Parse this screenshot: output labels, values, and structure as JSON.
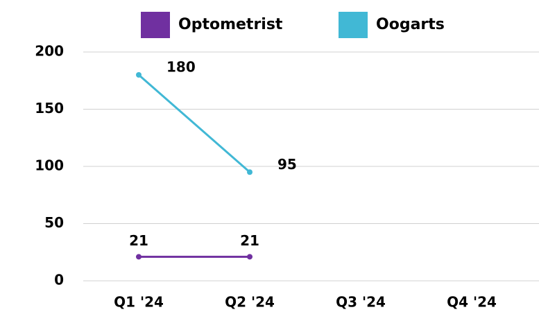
{
  "chart_data": {
    "type": "line",
    "categories": [
      "Q1 '24",
      "Q2 '24",
      "Q3 '24",
      "Q4 '24"
    ],
    "series": [
      {
        "name": "Optometrist",
        "color": "#7030a0",
        "values": [
          21,
          21,
          null,
          null
        ]
      },
      {
        "name": "Oogarts",
        "color": "#41b8d5",
        "values": [
          180,
          95,
          null,
          null
        ]
      }
    ],
    "ylim": [
      0,
      200
    ],
    "yticks": [
      0,
      50,
      100,
      150,
      200
    ],
    "grid": true,
    "legend": "top"
  }
}
